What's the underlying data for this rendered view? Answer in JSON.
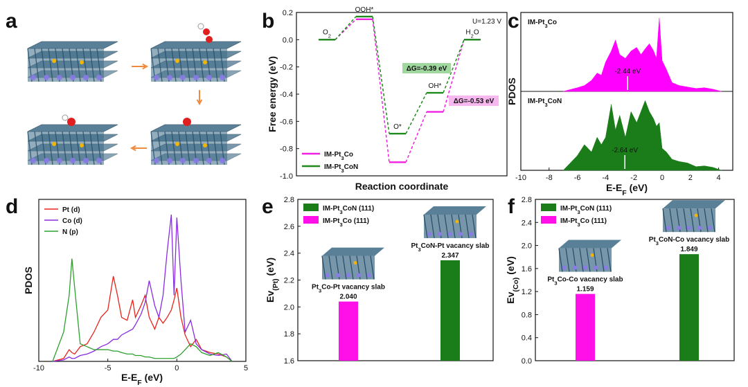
{
  "panels": {
    "a": "a",
    "b": "b",
    "c": "c",
    "d": "d",
    "e": "e",
    "f": "f"
  },
  "chart_data": [
    {
      "panel": "a",
      "type": "other",
      "description_free": true,
      "arrow_color": "#f08a3c",
      "slab_color": "#3d6a86"
    },
    {
      "panel": "b",
      "type": "line",
      "title": "U=1.23 V",
      "xlabel": "Reaction coordinate",
      "ylabel": "Free energy (eV)",
      "ylim": [
        -1.0,
        0.2
      ],
      "yticks": [
        "0.2",
        "0.0",
        "-0.2",
        "-0.4",
        "-0.6",
        "-0.8",
        "-1.0"
      ],
      "states": [
        "O2",
        "OOH*",
        "O*",
        "OH*",
        "H2O"
      ],
      "state_labels": [
        {
          "text": "O",
          "sub": "2"
        },
        {
          "text": "OOH*",
          "sub": ""
        },
        {
          "text": "O*",
          "sub": ""
        },
        {
          "text": "OH*",
          "sub": ""
        },
        {
          "text": "H",
          "sub": "2",
          "post": "O"
        }
      ],
      "series": [
        {
          "name": "IM-Pt3Co",
          "display": [
            "IM-Pt",
            "3",
            "Co"
          ],
          "color": "#f020e0",
          "values": [
            0.0,
            0.15,
            -0.9,
            -0.53,
            0.0
          ]
        },
        {
          "name": "IM-Pt3CoN",
          "display": [
            "IM-Pt",
            "3",
            "CoN"
          ],
          "color": "#1e8a1e",
          "values": [
            0.0,
            0.17,
            -0.69,
            -0.39,
            0.0
          ]
        }
      ],
      "annotations": [
        {
          "text": "ΔG=-0.39 eV",
          "color": "#1e8a1e",
          "bg": "#9fd79f"
        },
        {
          "text": "ΔG=-0.53 eV",
          "color": "#e020d0",
          "bg": "#f6b8ee"
        }
      ]
    },
    {
      "panel": "c",
      "type": "area",
      "xlabel": "E-E",
      "xlabel_sub": "F",
      "xlabel_unit": " (eV)",
      "ylabel": "PDOS",
      "xlim": [
        -10,
        5
      ],
      "xticks": [
        "-10",
        "-8",
        "-6",
        "-4",
        "-2",
        "0",
        "2",
        "4"
      ],
      "x": [
        -7.0,
        -6.0,
        -5.5,
        -5.0,
        -4.6,
        -4.3,
        -4.0,
        -3.6,
        -3.3,
        -3.0,
        -2.6,
        -2.2,
        -1.8,
        -1.5,
        -1.2,
        -0.9,
        -0.6,
        -0.4,
        -0.2,
        0.0,
        0.3,
        0.7,
        1.2,
        1.8,
        2.4,
        3.0,
        3.6,
        4.2
      ],
      "series": [
        {
          "name": "IM-Pt3Co",
          "display": [
            "IM-Pt",
            "3",
            "Co"
          ],
          "color": "#ff00ff",
          "band_center_label": "-2.44 eV",
          "band_center": -2.44,
          "values": [
            0.0,
            0.05,
            0.08,
            0.15,
            0.25,
            0.22,
            0.4,
            0.55,
            0.7,
            0.5,
            0.45,
            0.55,
            0.6,
            0.5,
            0.58,
            0.65,
            0.55,
            0.45,
            1.0,
            0.42,
            0.3,
            0.12,
            0.08,
            0.06,
            0.04,
            0.05,
            0.03,
            0.0
          ]
        },
        {
          "name": "IM-Pt3CoN",
          "display": [
            "IM-Pt",
            "3",
            "CoN"
          ],
          "color": "#1a7d1a",
          "band_center_label": "-2.64 eV",
          "band_center": -2.64,
          "values": [
            0.0,
            0.2,
            0.35,
            0.25,
            0.45,
            0.35,
            0.45,
            0.9,
            0.55,
            0.75,
            0.45,
            0.8,
            0.65,
            0.8,
            0.95,
            0.8,
            0.7,
            0.6,
            0.65,
            0.3,
            0.25,
            0.15,
            0.12,
            0.1,
            0.05,
            0.06,
            0.04,
            0.0
          ]
        }
      ]
    },
    {
      "panel": "d",
      "type": "line",
      "xlabel": "E-E",
      "xlabel_sub": "F",
      "xlabel_unit": " (eV)",
      "ylabel": "PDOS",
      "xlim": [
        -10,
        5
      ],
      "xticks": [
        "-10",
        "-5",
        "0",
        "5"
      ],
      "x": [
        -9.0,
        -8.2,
        -7.8,
        -7.6,
        -7.4,
        -7.0,
        -6.5,
        -6.0,
        -5.5,
        -5.0,
        -4.6,
        -4.3,
        -4.0,
        -3.6,
        -3.2,
        -3.0,
        -2.6,
        -2.3,
        -2.0,
        -1.6,
        -1.3,
        -1.0,
        -0.7,
        -0.4,
        -0.2,
        0.0,
        0.3,
        0.6,
        1.0,
        1.4,
        1.8,
        2.4,
        3.0,
        3.6,
        4.0
      ],
      "series": [
        {
          "name": "Pt (d)",
          "color": "#e8231b",
          "values": [
            0.0,
            0.02,
            0.08,
            0.06,
            0.05,
            0.1,
            0.12,
            0.2,
            0.3,
            0.35,
            0.58,
            0.45,
            0.3,
            0.28,
            0.42,
            0.3,
            0.38,
            0.45,
            0.3,
            0.22,
            0.3,
            0.26,
            0.3,
            0.35,
            0.42,
            0.5,
            0.3,
            0.18,
            0.1,
            0.15,
            0.08,
            0.06,
            0.05,
            0.03,
            0.0
          ]
        },
        {
          "name": "Co (d)",
          "color": "#8a2be2",
          "values": [
            0.0,
            0.01,
            0.03,
            0.02,
            0.02,
            0.04,
            0.05,
            0.07,
            0.1,
            0.12,
            0.15,
            0.15,
            0.18,
            0.2,
            0.22,
            0.25,
            0.32,
            0.4,
            0.55,
            0.38,
            0.3,
            0.45,
            0.75,
            1.0,
            0.45,
            0.98,
            0.55,
            0.2,
            0.28,
            0.12,
            0.08,
            0.05,
            0.04,
            0.05,
            0.0
          ]
        },
        {
          "name": "N (p)",
          "color": "#2ca02c",
          "values": [
            0.0,
            0.2,
            0.45,
            0.7,
            0.5,
            0.12,
            0.1,
            0.08,
            0.08,
            0.08,
            0.07,
            0.07,
            0.06,
            0.05,
            0.05,
            0.04,
            0.04,
            0.03,
            0.03,
            0.02,
            0.02,
            0.02,
            0.02,
            0.02,
            0.02,
            0.03,
            0.05,
            0.08,
            0.12,
            0.1,
            0.06,
            0.04,
            0.06,
            0.03,
            0.0
          ]
        }
      ]
    },
    {
      "panel": "e",
      "type": "bar",
      "ylabel": "Ev",
      "ylabel_sub": "(Pt)",
      "ylabel_unit": " (eV)",
      "ylim": [
        1.6,
        2.8
      ],
      "yticks": [
        "2.8",
        "2.6",
        "2.4",
        "2.2",
        "2.0",
        "1.8",
        "1.6"
      ],
      "categories": [
        "Pt3Co-Pt vacancy slab",
        "Pt3CoN-Pt vacancy slab"
      ],
      "category_display": [
        [
          "Pt",
          "3",
          "Co-Pt vacancy slab"
        ],
        [
          "Pt",
          "3",
          "CoN-Pt vacancy slab"
        ]
      ],
      "values": [
        2.04,
        2.347
      ],
      "value_labels": [
        "2.040",
        "2.347"
      ],
      "colors": [
        "#ff10e8",
        "#1a7d1a"
      ],
      "legend": [
        {
          "name": "IM-Pt3CoN (111)",
          "display": [
            "IM-Pt",
            "3",
            "CoN (111)"
          ],
          "color": "#1a7d1a"
        },
        {
          "name": "IM-Pt3Co (111)",
          "display": [
            "IM-Pt",
            "3",
            "Co (111)"
          ],
          "color": "#ff10e8"
        }
      ]
    },
    {
      "panel": "f",
      "type": "bar",
      "ylabel": "Ev",
      "ylabel_sub": "(Co)",
      "ylabel_unit": " (eV)",
      "ylim": [
        0.0,
        2.8
      ],
      "yticks": [
        "2.8",
        "2.4",
        "2.0",
        "1.6",
        "1.2",
        "0.8",
        "0.4",
        "0.0"
      ],
      "categories": [
        "Pt3Co-Co vacancy slab",
        "Pt3CoN-Co vacancy slab"
      ],
      "category_display": [
        [
          "Pt",
          "3",
          "Co-Co vacancy slab"
        ],
        [
          "Pt",
          "3",
          "CoN-Co vacancy slab"
        ]
      ],
      "values": [
        1.159,
        1.849
      ],
      "value_labels": [
        "1.159",
        "1.849"
      ],
      "colors": [
        "#ff10e8",
        "#1a7d1a"
      ],
      "legend": [
        {
          "name": "IM-Pt3CoN (111)",
          "display": [
            "IM-Pt",
            "3",
            "CoN (111)"
          ],
          "color": "#1a7d1a"
        },
        {
          "name": "IM-Pt3Co (111)",
          "display": [
            "IM-Pt",
            "3",
            "Co (111)"
          ],
          "color": "#ff10e8"
        }
      ]
    }
  ]
}
